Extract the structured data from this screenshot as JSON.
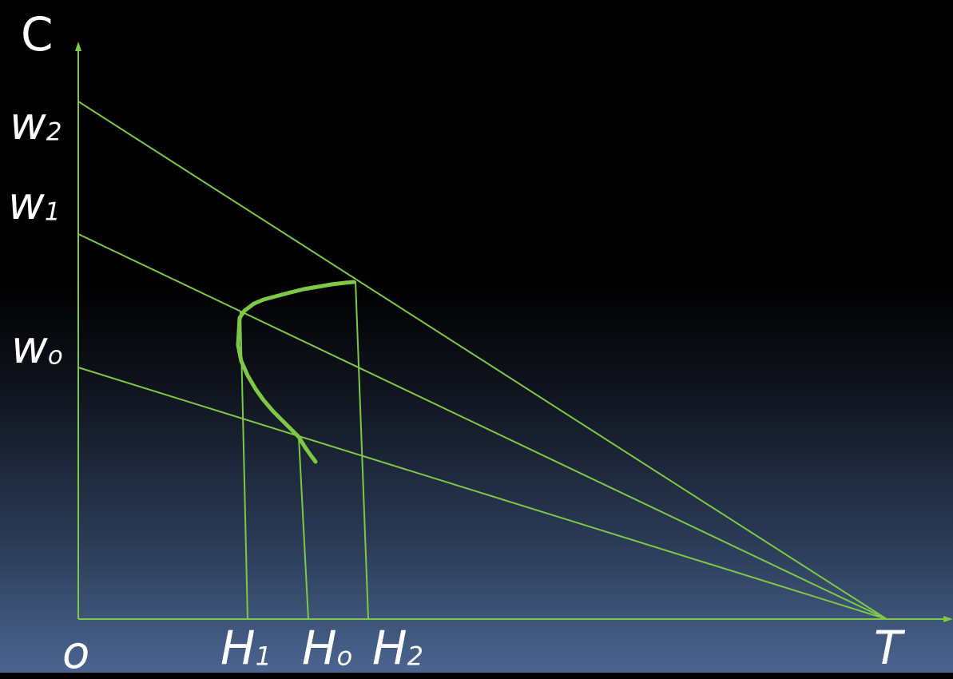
{
  "diagram": {
    "line_color": "#7dc845",
    "curve_color": "#7dc845",
    "labels": {
      "y_axis": "C",
      "origin": "o",
      "w2": {
        "base": "w",
        "sub": "2"
      },
      "w1": {
        "base": "w",
        "sub": "1"
      },
      "w0": {
        "base": "w",
        "sub": "o"
      },
      "h1": {
        "base": "H",
        "sub": "1"
      },
      "h0": {
        "base": "H",
        "sub": "o"
      },
      "h2": {
        "base": "H",
        "sub": "2"
      },
      "t": "T"
    }
  }
}
